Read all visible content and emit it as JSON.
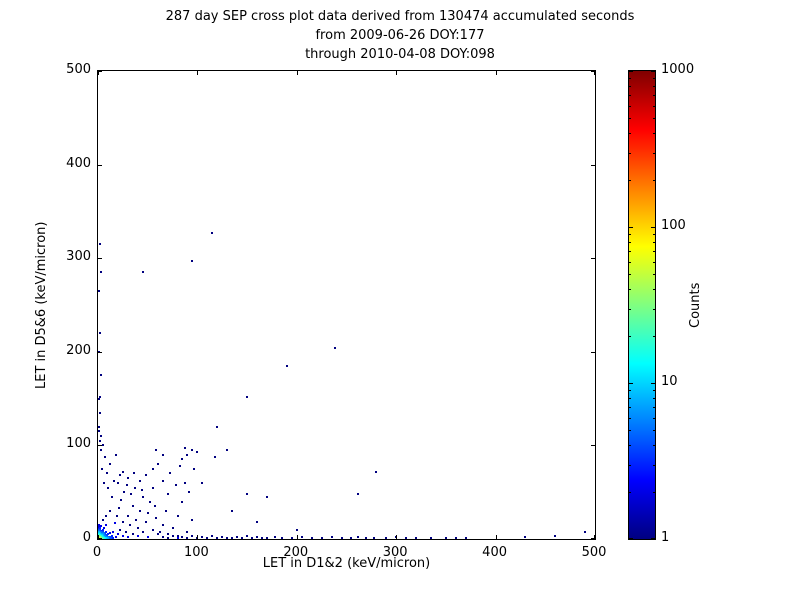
{
  "chart_data": {
    "type": "scatter",
    "title_lines": [
      "287 day SEP cross plot data derived from 130474 accumulated seconds",
      "from 2009-06-26 DOY:177",
      "through 2010-04-08 DOY:098"
    ],
    "xlabel": "LET in D1&2 (keV/micron)",
    "ylabel": "LET in D5&6 (keV/micron)",
    "xlim": [
      0,
      500
    ],
    "ylim": [
      0,
      500
    ],
    "xticks": [
      0,
      100,
      200,
      300,
      400,
      500
    ],
    "yticks": [
      0,
      100,
      200,
      300,
      400,
      500
    ],
    "grid": false,
    "colorbar": {
      "label": "Counts",
      "scale": "log",
      "range": [
        1,
        1000
      ],
      "ticks": [
        1,
        10,
        100,
        1000
      ],
      "colormap": "jet",
      "low_color": "#00008f",
      "high_color": "#800000"
    },
    "points": [
      [
        0.5,
        0.5,
        100
      ],
      [
        1,
        0.5,
        60
      ],
      [
        0.5,
        1,
        50
      ],
      [
        1,
        1,
        60
      ],
      [
        2,
        1,
        45
      ],
      [
        1,
        2,
        40
      ],
      [
        2,
        2,
        35
      ],
      [
        3,
        1,
        30
      ],
      [
        1,
        3,
        28
      ],
      [
        3,
        2,
        22
      ],
      [
        2,
        3,
        20
      ],
      [
        3,
        3,
        18
      ],
      [
        4,
        1,
        25
      ],
      [
        1,
        4,
        18
      ],
      [
        4,
        2,
        15
      ],
      [
        2,
        4,
        14
      ],
      [
        4,
        3,
        12
      ],
      [
        3,
        4,
        10
      ],
      [
        4,
        4,
        10
      ],
      [
        5,
        1,
        20
      ],
      [
        1,
        5,
        14
      ],
      [
        5,
        2,
        12
      ],
      [
        2,
        5,
        10
      ],
      [
        5,
        3,
        9
      ],
      [
        3,
        5,
        8
      ],
      [
        5,
        5,
        7
      ],
      [
        6,
        1,
        15
      ],
      [
        1,
        6,
        10
      ],
      [
        6,
        2,
        9
      ],
      [
        2,
        6,
        8
      ],
      [
        6,
        4,
        6
      ],
      [
        4,
        6,
        5
      ],
      [
        6,
        6,
        5
      ],
      [
        7,
        1,
        12
      ],
      [
        1,
        7,
        8
      ],
      [
        7,
        3,
        6
      ],
      [
        3,
        7,
        5
      ],
      [
        7,
        5,
        4
      ],
      [
        5,
        7,
        4
      ],
      [
        8,
        1,
        10
      ],
      [
        1,
        8,
        7
      ],
      [
        8,
        2,
        6
      ],
      [
        2,
        8,
        5
      ],
      [
        8,
        4,
        4
      ],
      [
        4,
        8,
        3
      ],
      [
        8,
        8,
        3
      ],
      [
        9,
        1,
        8
      ],
      [
        1,
        9,
        5
      ],
      [
        9,
        3,
        4
      ],
      [
        3,
        9,
        3
      ],
      [
        10,
        1,
        7
      ],
      [
        1,
        10,
        4
      ],
      [
        10,
        2,
        5
      ],
      [
        2,
        10,
        4
      ],
      [
        10,
        5,
        3
      ],
      [
        5,
        10,
        3
      ],
      [
        11,
        1,
        5
      ],
      [
        1,
        11,
        3
      ],
      [
        12,
        2,
        4
      ],
      [
        2,
        12,
        3
      ],
      [
        12,
        6,
        2
      ],
      [
        6,
        12,
        2
      ],
      [
        13,
        1,
        4
      ],
      [
        1,
        13,
        2
      ],
      [
        14,
        3,
        3
      ],
      [
        3,
        14,
        2
      ],
      [
        15,
        1,
        3
      ],
      [
        1,
        15,
        2
      ],
      [
        15,
        8,
        2
      ],
      [
        8,
        15,
        2
      ],
      [
        18,
        2,
        2
      ],
      [
        20,
        5,
        2
      ],
      [
        22,
        10,
        1
      ],
      [
        25,
        3,
        2
      ],
      [
        25,
        18,
        1
      ],
      [
        28,
        8,
        1
      ],
      [
        30,
        2,
        2
      ],
      [
        30,
        25,
        1
      ],
      [
        32,
        15,
        1
      ],
      [
        35,
        5,
        1
      ],
      [
        35,
        35,
        1
      ],
      [
        38,
        20,
        1
      ],
      [
        40,
        3,
        2
      ],
      [
        40,
        12,
        1
      ],
      [
        42,
        30,
        1
      ],
      [
        45,
        8,
        1
      ],
      [
        45,
        45,
        1
      ],
      [
        48,
        18,
        1
      ],
      [
        50,
        2,
        2
      ],
      [
        50,
        28,
        1
      ],
      [
        52,
        40,
        1
      ],
      [
        55,
        10,
        1
      ],
      [
        55,
        55,
        1
      ],
      [
        58,
        22,
        1
      ],
      [
        60,
        5,
        1
      ],
      [
        17,
        17,
        2
      ],
      [
        19,
        25,
        1
      ],
      [
        21,
        33,
        1
      ],
      [
        23,
        42,
        1
      ],
      [
        26,
        50,
        1
      ],
      [
        29,
        58,
        1
      ],
      [
        33,
        48,
        1
      ],
      [
        37,
        55,
        1
      ],
      [
        44,
        52,
        1
      ],
      [
        57,
        35,
        1
      ],
      [
        12,
        30,
        1
      ],
      [
        8,
        25,
        1
      ],
      [
        5,
        20,
        1
      ],
      [
        14,
        45,
        1
      ],
      [
        10,
        55,
        1
      ],
      [
        6,
        60,
        1
      ],
      [
        16,
        62,
        1
      ],
      [
        22,
        68,
        1
      ],
      [
        9,
        70,
        1
      ],
      [
        4,
        75,
        1
      ],
      [
        12,
        80,
        1
      ],
      [
        7,
        88,
        1
      ],
      [
        3,
        95,
        1
      ],
      [
        18,
        90,
        1
      ],
      [
        5,
        100,
        1
      ],
      [
        62,
        8,
        1
      ],
      [
        65,
        15,
        1
      ],
      [
        65,
        62,
        1
      ],
      [
        68,
        30,
        1
      ],
      [
        70,
        5,
        1
      ],
      [
        70,
        48,
        1
      ],
      [
        72,
        70,
        1
      ],
      [
        75,
        12,
        1
      ],
      [
        78,
        58,
        1
      ],
      [
        80,
        3,
        1
      ],
      [
        80,
        25,
        1
      ],
      [
        82,
        78,
        1
      ],
      [
        85,
        40,
        1
      ],
      [
        85,
        85,
        1
      ],
      [
        88,
        60,
        1
      ],
      [
        90,
        8,
        1
      ],
      [
        90,
        90,
        1
      ],
      [
        92,
        50,
        1
      ],
      [
        95,
        20,
        1
      ],
      [
        95,
        95,
        1
      ],
      [
        97,
        75,
        1
      ],
      [
        100,
        93,
        1
      ],
      [
        88,
        97,
        1
      ],
      [
        60,
        80,
        1
      ],
      [
        55,
        75,
        1
      ],
      [
        48,
        68,
        1
      ],
      [
        42,
        62,
        1
      ],
      [
        36,
        70,
        1
      ],
      [
        30,
        65,
        1
      ],
      [
        25,
        72,
        1
      ],
      [
        20,
        60,
        1
      ],
      [
        65,
        90,
        1
      ],
      [
        58,
        95,
        1
      ],
      [
        105,
        60,
        1
      ],
      [
        118,
        88,
        1
      ],
      [
        130,
        95,
        1
      ],
      [
        65,
        2,
        1
      ],
      [
        70,
        1,
        1
      ],
      [
        75,
        3,
        1
      ],
      [
        80,
        1,
        2
      ],
      [
        85,
        2,
        1
      ],
      [
        90,
        1,
        1
      ],
      [
        95,
        3,
        1
      ],
      [
        100,
        1,
        1
      ],
      [
        105,
        2,
        1
      ],
      [
        110,
        1,
        1
      ],
      [
        115,
        3,
        1
      ],
      [
        120,
        1,
        1
      ],
      [
        125,
        2,
        1
      ],
      [
        130,
        1,
        1
      ],
      [
        135,
        1,
        1
      ],
      [
        140,
        2,
        1
      ],
      [
        145,
        1,
        1
      ],
      [
        150,
        3,
        1
      ],
      [
        155,
        1,
        1
      ],
      [
        160,
        2,
        1
      ],
      [
        165,
        1,
        1
      ],
      [
        170,
        1,
        1
      ],
      [
        178,
        2,
        1
      ],
      [
        185,
        1,
        1
      ],
      [
        195,
        1,
        1
      ],
      [
        205,
        2,
        1
      ],
      [
        215,
        1,
        1
      ],
      [
        225,
        1,
        1
      ],
      [
        235,
        2,
        1
      ],
      [
        245,
        1,
        1
      ],
      [
        255,
        1,
        1
      ],
      [
        262,
        2,
        1
      ],
      [
        270,
        1,
        1
      ],
      [
        278,
        1,
        1
      ],
      [
        290,
        1,
        1
      ],
      [
        300,
        2,
        1
      ],
      [
        310,
        1,
        1
      ],
      [
        320,
        1,
        1
      ],
      [
        335,
        1,
        1
      ],
      [
        350,
        1,
        1
      ],
      [
        360,
        1,
        1
      ],
      [
        370,
        1,
        1
      ],
      [
        430,
        2,
        1
      ],
      [
        460,
        3,
        1
      ],
      [
        490,
        8,
        1
      ],
      [
        2,
        315,
        1
      ],
      [
        3,
        285,
        1
      ],
      [
        1,
        265,
        1
      ],
      [
        2,
        220,
        1
      ],
      [
        1,
        200,
        1
      ],
      [
        3,
        175,
        1
      ],
      [
        2,
        152,
        1
      ],
      [
        1,
        150,
        1
      ],
      [
        2,
        135,
        1
      ],
      [
        1,
        120,
        1
      ],
      [
        3,
        110,
        1
      ],
      [
        2,
        105,
        1
      ],
      [
        1,
        115,
        1
      ],
      [
        115,
        327,
        1
      ],
      [
        45,
        285,
        1
      ],
      [
        95,
        297,
        1
      ],
      [
        238,
        204,
        1
      ],
      [
        190,
        185,
        1
      ],
      [
        150,
        152,
        1
      ],
      [
        280,
        72,
        1
      ],
      [
        262,
        48,
        1
      ],
      [
        150,
        48,
        1
      ],
      [
        170,
        45,
        1
      ],
      [
        120,
        120,
        1
      ],
      [
        135,
        30,
        1
      ],
      [
        160,
        18,
        1
      ],
      [
        200,
        10,
        1
      ]
    ]
  }
}
